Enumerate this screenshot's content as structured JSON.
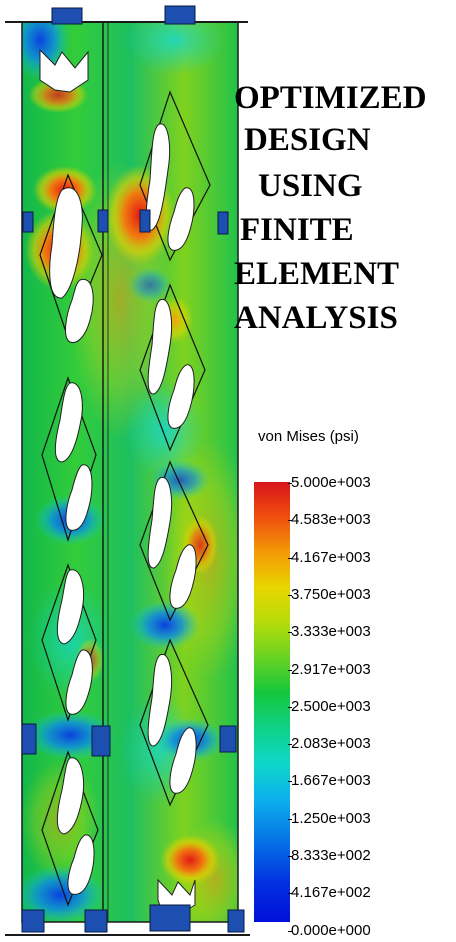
{
  "title_lines": [
    "OPTIMIZED",
    "DESIGN",
    "USING",
    "FINITE",
    "ELEMENT",
    "ANALYSIS"
  ],
  "legend": {
    "title": "von Mises (psi)",
    "ticks": [
      "5.000e+003",
      "4.583e+003",
      "4.167e+003",
      "3.750e+003",
      "3.333e+003",
      "2.917e+003",
      "2.500e+003",
      "2.083e+003",
      "1.667e+003",
      "1.250e+003",
      "8.333e+002",
      "4.167e+002",
      "0.000e+000"
    ],
    "colors": [
      "#d8141c",
      "#f04f0e",
      "#f49a06",
      "#e8d600",
      "#b5dc0a",
      "#67d223",
      "#14c73d",
      "#0fd188",
      "#0fd7c9",
      "#0cb0ec",
      "#0570e6",
      "#0331e0",
      "#0010db"
    ]
  },
  "colors": {
    "high_stress": "#e8361a",
    "mid_stress": "#2ec95a",
    "low_stress": "#1466e8",
    "cyan": "#12c6e0"
  }
}
